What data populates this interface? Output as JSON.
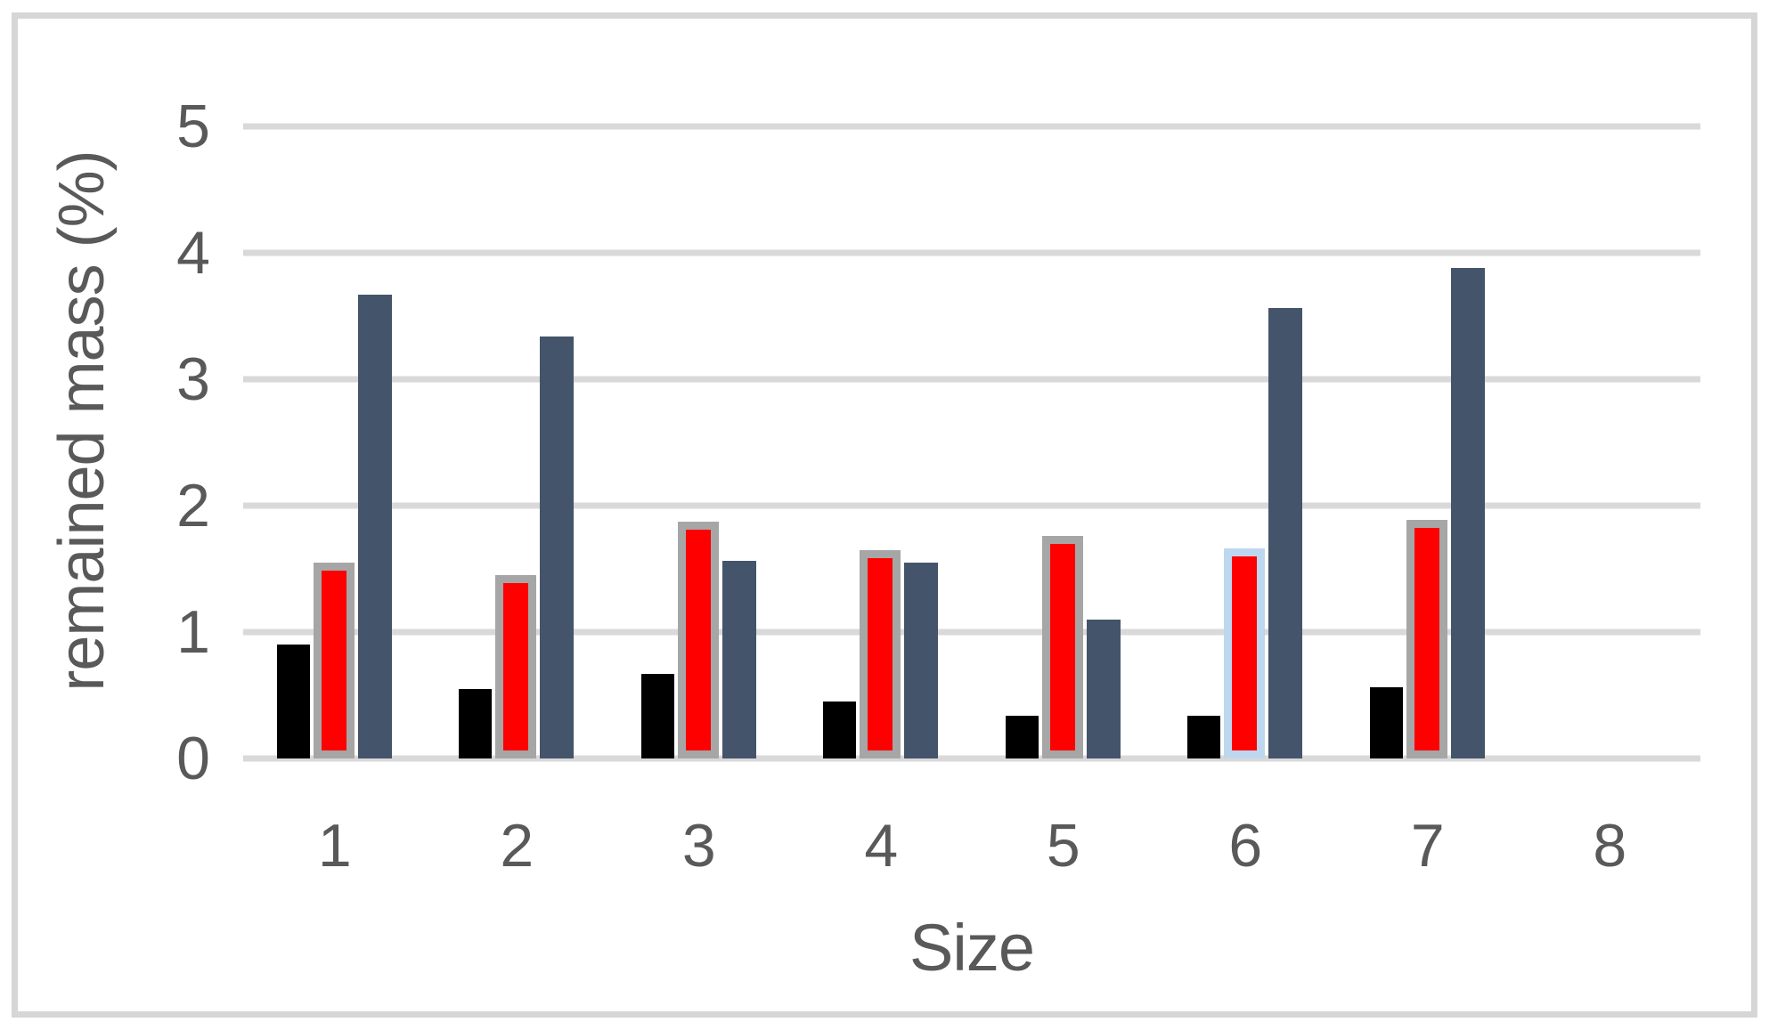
{
  "chart_data": {
    "type": "bar",
    "title": "",
    "xlabel": "Size",
    "ylabel": "remained mass (%)",
    "categories": [
      "1",
      "2",
      "3",
      "4",
      "5",
      "6",
      "7",
      "8"
    ],
    "series": [
      {
        "name": "black series",
        "color": "#000000",
        "values": [
          0.9,
          0.55,
          0.67,
          0.45,
          0.34,
          0.34,
          0.56,
          0
        ]
      },
      {
        "name": "red outlined series",
        "color": "#ff0000",
        "border_colors": [
          "#a6a6a6",
          "#a6a6a6",
          "#a6a6a6",
          "#a6a6a6",
          "#a6a6a6",
          "#bdd7ee",
          "#a6a6a6",
          "#a6a6a6"
        ],
        "values": [
          1.55,
          1.45,
          1.87,
          1.65,
          1.76,
          1.66,
          1.89,
          0
        ]
      },
      {
        "name": "slate blue series",
        "color": "#44546a",
        "values": [
          3.67,
          3.34,
          1.56,
          1.55,
          1.1,
          3.56,
          3.88,
          0
        ]
      }
    ],
    "ylim": [
      0,
      5
    ],
    "yticks": [
      0,
      1,
      2,
      3,
      4,
      5
    ],
    "grid": true,
    "legend_position": "none",
    "gridline_color": "#d9d9d9",
    "frame_color": "#d6d6d6",
    "text_color": "#595959"
  }
}
